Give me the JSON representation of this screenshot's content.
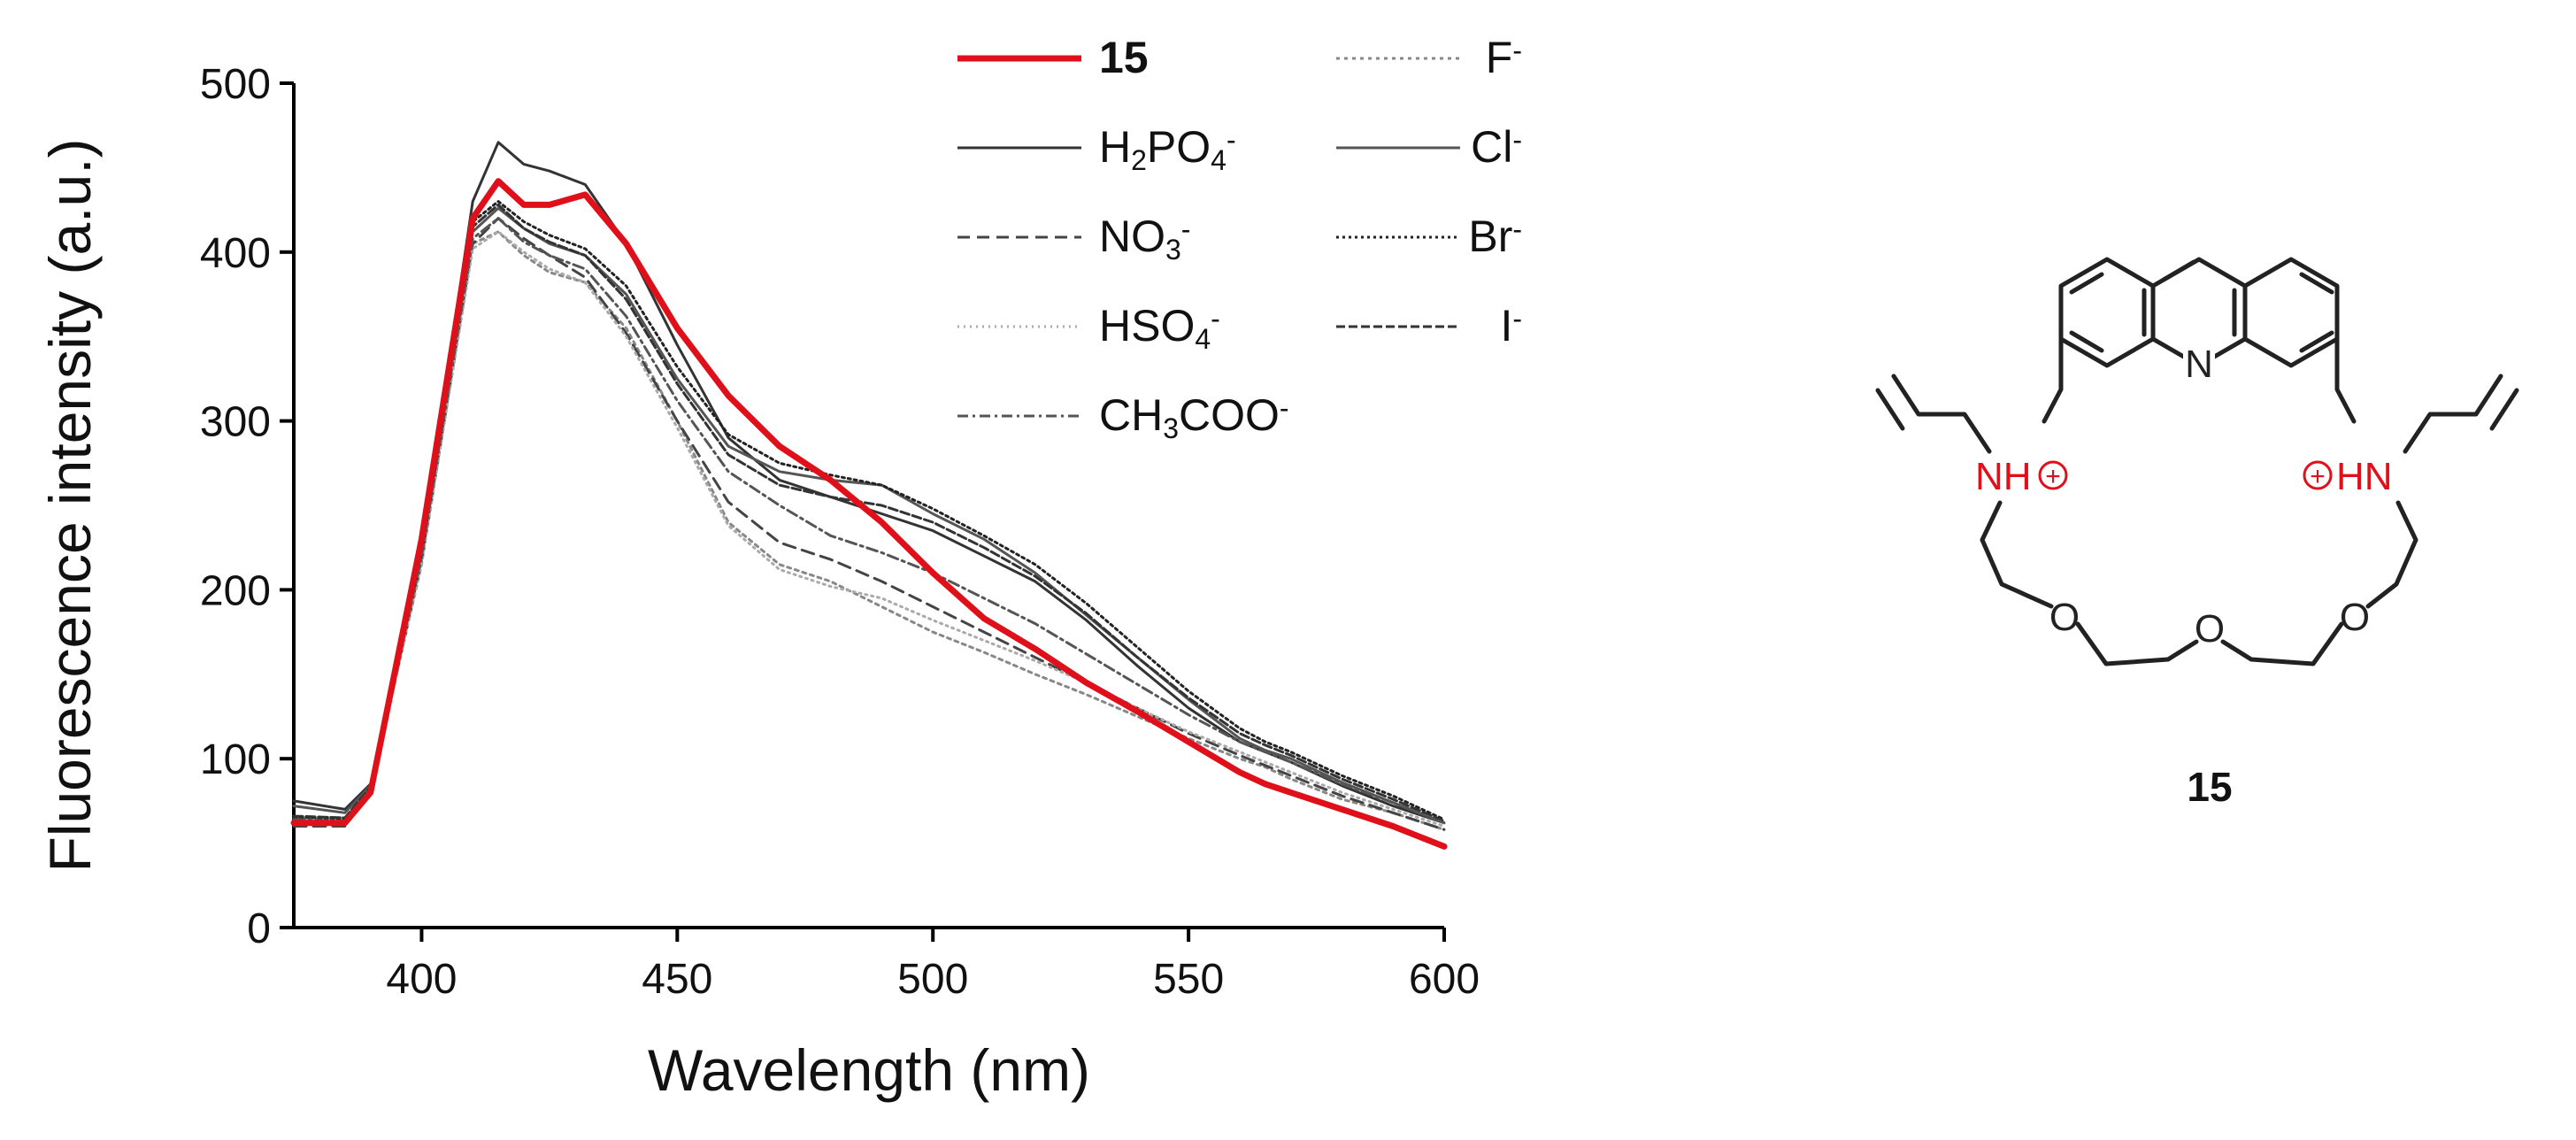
{
  "chart_data": {
    "type": "line",
    "xlabel": "Wavelength (nm)",
    "ylabel": "Fluorescence intensity (a.u.)",
    "xlim": [
      375,
      600
    ],
    "ylim": [
      0,
      500
    ],
    "x_ticks": [
      400,
      450,
      500,
      550,
      600
    ],
    "y_ticks": [
      0,
      100,
      200,
      300,
      400,
      500
    ],
    "grid": false,
    "legend_position": "top-right",
    "x": [
      375,
      385,
      390,
      400,
      410,
      415,
      420,
      425,
      432,
      440,
      450,
      460,
      470,
      480,
      490,
      500,
      510,
      520,
      530,
      540,
      550,
      560,
      565,
      570,
      580,
      590,
      600
    ],
    "series": [
      {
        "name": "15",
        "name_parts": [
          {
            "t": "15"
          }
        ],
        "color": "#e0101a",
        "dash": "solid",
        "width": 7,
        "bold": true,
        "values": [
          62,
          62,
          80,
          230,
          420,
          442,
          428,
          428,
          434,
          405,
          355,
          315,
          285,
          265,
          240,
          210,
          183,
          165,
          145,
          128,
          110,
          92,
          85,
          80,
          70,
          60,
          48
        ]
      },
      {
        "name": "F-",
        "name_parts": [
          {
            "t": "F"
          },
          {
            "t": "-",
            "s": "sup"
          }
        ],
        "color": "#888888",
        "dash": "4 5",
        "width": 3,
        "values": [
          65,
          65,
          82,
          215,
          405,
          412,
          398,
          388,
          382,
          355,
          300,
          240,
          215,
          205,
          190,
          175,
          163,
          150,
          138,
          125,
          112,
          100,
          95,
          88,
          76,
          68,
          58
        ]
      },
      {
        "name": "H2PO4-",
        "name_parts": [
          {
            "t": "H"
          },
          {
            "t": "2",
            "s": "sub"
          },
          {
            "t": "PO"
          },
          {
            "t": "4",
            "s": "sub"
          },
          {
            "t": "-",
            "s": "sup"
          }
        ],
        "color": "#333333",
        "dash": "solid",
        "width": 3,
        "values": [
          75,
          70,
          85,
          225,
          430,
          465,
          452,
          448,
          440,
          405,
          345,
          290,
          265,
          255,
          245,
          235,
          220,
          205,
          182,
          155,
          130,
          110,
          104,
          98,
          84,
          72,
          62
        ]
      },
      {
        "name": "Cl-",
        "name_parts": [
          {
            "t": "Cl"
          },
          {
            "t": "-",
            "s": "sup"
          }
        ],
        "color": "#555555",
        "dash": "solid",
        "width": 3,
        "values": [
          72,
          68,
          84,
          220,
          412,
          426,
          414,
          405,
          398,
          375,
          325,
          285,
          270,
          265,
          262,
          245,
          230,
          210,
          185,
          160,
          135,
          112,
          105,
          100,
          86,
          74,
          62
        ]
      },
      {
        "name": "NO3-",
        "name_parts": [
          {
            "t": "NO"
          },
          {
            "t": "3",
            "s": "sub"
          },
          {
            "t": "-",
            "s": "sup"
          }
        ],
        "color": "#444444",
        "dash": "14 8",
        "width": 3,
        "values": [
          60,
          60,
          80,
          218,
          405,
          420,
          408,
          398,
          385,
          352,
          300,
          252,
          228,
          218,
          205,
          190,
          175,
          160,
          145,
          130,
          115,
          102,
          96,
          90,
          78,
          68,
          58
        ]
      },
      {
        "name": "Br-",
        "name_parts": [
          {
            "t": "Br"
          },
          {
            "t": "-",
            "s": "sup"
          }
        ],
        "color": "#222222",
        "dash": "3 4",
        "width": 3,
        "values": [
          65,
          64,
          82,
          222,
          418,
          430,
          418,
          410,
          402,
          380,
          332,
          292,
          275,
          268,
          262,
          248,
          232,
          215,
          192,
          166,
          140,
          118,
          110,
          104,
          90,
          78,
          64
        ]
      },
      {
        "name": "HSO4-",
        "name_parts": [
          {
            "t": "HSO"
          },
          {
            "t": "4",
            "s": "sub"
          },
          {
            "t": "-",
            "s": "sup"
          }
        ],
        "color": "#aaaaaa",
        "dash": "2 5",
        "width": 3,
        "values": [
          64,
          63,
          82,
          216,
          402,
          412,
          400,
          390,
          382,
          350,
          296,
          238,
          212,
          202,
          195,
          182,
          170,
          158,
          145,
          130,
          116,
          104,
          98,
          92,
          80,
          70,
          60
        ]
      },
      {
        "name": "I-",
        "name_parts": [
          {
            "t": "I"
          },
          {
            "t": "-",
            "s": "sup"
          }
        ],
        "color": "#333333",
        "dash": "10 4",
        "width": 3,
        "values": [
          66,
          65,
          83,
          220,
          415,
          428,
          414,
          406,
          398,
          372,
          322,
          280,
          262,
          255,
          250,
          240,
          225,
          208,
          186,
          160,
          136,
          115,
          108,
          102,
          88,
          76,
          63
        ]
      },
      {
        "name": "CH3COO-",
        "name_parts": [
          {
            "t": "CH"
          },
          {
            "t": "3",
            "s": "sub"
          },
          {
            "t": "COO"
          },
          {
            "t": "-",
            "s": "sup"
          }
        ],
        "color": "#555555",
        "dash": "12 5 3 5",
        "width": 3,
        "values": [
          64,
          63,
          82,
          220,
          408,
          420,
          406,
          398,
          390,
          362,
          312,
          270,
          250,
          232,
          222,
          210,
          195,
          180,
          162,
          144,
          126,
          110,
          104,
          98,
          85,
          74,
          62
        ]
      }
    ]
  },
  "structure": {
    "label": "15",
    "atoms": {
      "n_ring": "N",
      "nh_left": "NH",
      "hn_right": "HN",
      "o_left": "O",
      "o_center": "O",
      "o_right": "O",
      "charge_symbol": "+"
    },
    "colors": {
      "bond": "#222222",
      "charged_atom": "#e0101a"
    }
  }
}
